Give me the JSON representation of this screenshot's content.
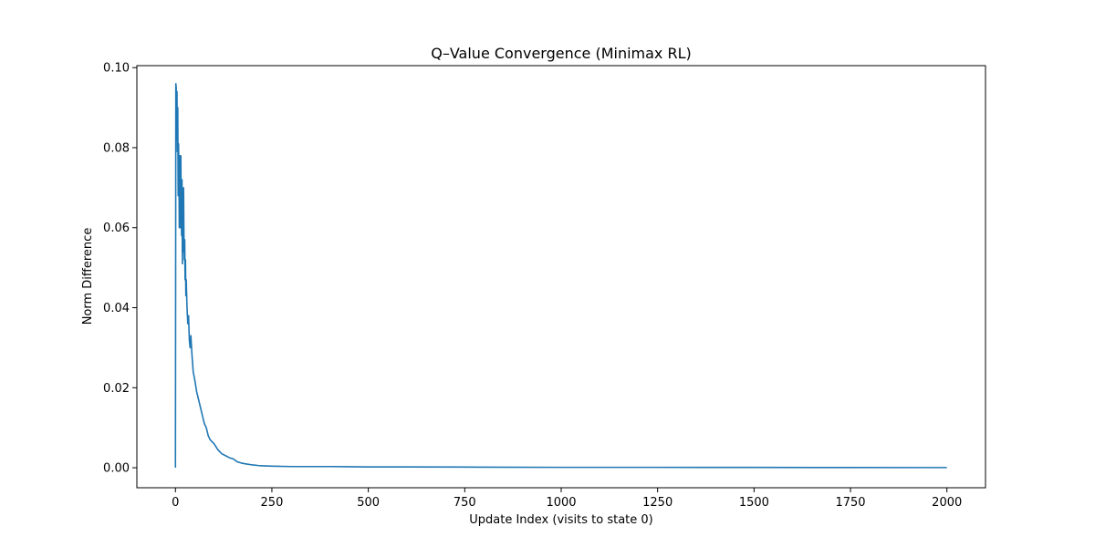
{
  "chart_data": {
    "type": "line",
    "title": "Q–Value Convergence (Minimax RL)",
    "xlabel": "Update Index (visits to state 0)",
    "ylabel": "Norm Difference",
    "xlim": [
      -100,
      2100
    ],
    "ylim": [
      -0.005,
      0.1005
    ],
    "xticks": [
      0,
      250,
      500,
      750,
      1000,
      1250,
      1500,
      1750,
      2000
    ],
    "yticks": [
      0.0,
      0.02,
      0.04,
      0.06,
      0.08,
      0.1
    ],
    "xtick_labels": [
      "0",
      "250",
      "500",
      "750",
      "1000",
      "1250",
      "1500",
      "1750",
      "2000"
    ],
    "ytick_labels": [
      "0.00",
      "0.02",
      "0.04",
      "0.06",
      "0.08",
      "0.10"
    ],
    "grid": false,
    "color": "#1f77b4",
    "series": [
      {
        "x": [
          0,
          1,
          2,
          3,
          4,
          5,
          6,
          7,
          8,
          9,
          10,
          11,
          12,
          13,
          14,
          15,
          16,
          17,
          18,
          19,
          20,
          21,
          22,
          23,
          24,
          25,
          26,
          27,
          28,
          30,
          32,
          34,
          36,
          38,
          40,
          43,
          46,
          50,
          55,
          60,
          65,
          70,
          75,
          80,
          85,
          90,
          95,
          100,
          110,
          120,
          130,
          140,
          150,
          160,
          170,
          180,
          200,
          220,
          250,
          300,
          400,
          500,
          600,
          800,
          1000,
          1250,
          1500,
          1750,
          2000
        ],
        "y": [
          0.0,
          0.096,
          0.095,
          0.082,
          0.094,
          0.079,
          0.09,
          0.068,
          0.081,
          0.075,
          0.06,
          0.078,
          0.07,
          0.06,
          0.078,
          0.063,
          0.058,
          0.072,
          0.051,
          0.065,
          0.054,
          0.07,
          0.058,
          0.052,
          0.057,
          0.047,
          0.052,
          0.043,
          0.047,
          0.04,
          0.036,
          0.038,
          0.032,
          0.03,
          0.033,
          0.028,
          0.024,
          0.022,
          0.019,
          0.017,
          0.015,
          0.013,
          0.011,
          0.01,
          0.008,
          0.007,
          0.0065,
          0.006,
          0.0045,
          0.0035,
          0.003,
          0.0025,
          0.0022,
          0.0015,
          0.0012,
          0.001,
          0.0007,
          0.0005,
          0.0004,
          0.0003,
          0.0003,
          0.0002,
          0.0002,
          0.00015,
          0.0001,
          0.0001,
          8e-05,
          5e-05,
          4e-05
        ]
      }
    ]
  }
}
